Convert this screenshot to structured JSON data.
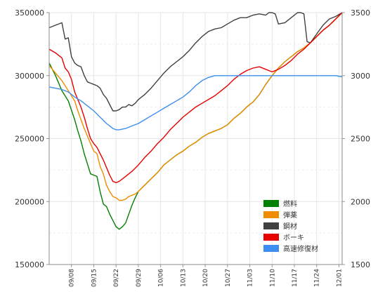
{
  "chart_data": {
    "type": "line",
    "title": "",
    "xlabel": "",
    "ylabel": "",
    "ylim_left": [
      150000,
      350000
    ],
    "ylim_right": [
      1500,
      3500
    ],
    "yticks_left": [
      "150000",
      "200000",
      "250000",
      "300000",
      "350000"
    ],
    "yticks_right": [
      "1500",
      "2000",
      "2500",
      "3000",
      "3500"
    ],
    "x_range": [
      0,
      92
    ],
    "x_ticks": [
      {
        "x": 7,
        "label": "09/08"
      },
      {
        "x": 14,
        "label": "09/15"
      },
      {
        "x": 21,
        "label": "09/22"
      },
      {
        "x": 28,
        "label": "09/29"
      },
      {
        "x": 35,
        "label": "10/06"
      },
      {
        "x": 42,
        "label": "10/13"
      },
      {
        "x": 49,
        "label": "10/20"
      },
      {
        "x": 56,
        "label": "10/27"
      },
      {
        "x": 63,
        "label": "11/03"
      },
      {
        "x": 70,
        "label": "11/10"
      },
      {
        "x": 77,
        "label": "11/17"
      },
      {
        "x": 84,
        "label": "11/24"
      },
      {
        "x": 91,
        "label": "12/01"
      }
    ],
    "grid": true,
    "legend_position": "bottom-right",
    "series": [
      {
        "name": "燃料",
        "color": "#008000",
        "axis": "left",
        "points": [
          [
            0,
            310000
          ],
          [
            2,
            300000
          ],
          [
            4,
            288000
          ],
          [
            6,
            280000
          ],
          [
            8,
            265000
          ],
          [
            9,
            256000
          ],
          [
            10,
            248000
          ],
          [
            11,
            238000
          ],
          [
            12,
            230000
          ],
          [
            13,
            222000
          ],
          [
            14,
            221000
          ],
          [
            15,
            220000
          ],
          [
            16,
            208000
          ],
          [
            17,
            198000
          ],
          [
            18,
            196000
          ],
          [
            19,
            190000
          ],
          [
            20,
            185000
          ],
          [
            21,
            180000
          ],
          [
            22,
            178000
          ],
          [
            23,
            180000
          ],
          [
            24,
            183000
          ],
          [
            25,
            190000
          ],
          [
            26,
            197000
          ],
          [
            27,
            203000
          ],
          [
            28,
            208000
          ],
          [
            30,
            213000
          ],
          [
            32,
            218000
          ],
          [
            34,
            223000
          ],
          [
            36,
            229000
          ],
          [
            38,
            233000
          ],
          [
            40,
            237000
          ],
          [
            42,
            240000
          ],
          [
            44,
            244000
          ],
          [
            46,
            247000
          ],
          [
            48,
            251000
          ],
          [
            50,
            254000
          ],
          [
            52,
            256000
          ],
          [
            54,
            258000
          ],
          [
            56,
            261000
          ],
          [
            58,
            266000
          ],
          [
            60,
            270000
          ],
          [
            62,
            275000
          ],
          [
            64,
            279000
          ],
          [
            66,
            285000
          ],
          [
            68,
            293000
          ],
          [
            70,
            300000
          ],
          [
            72,
            306000
          ],
          [
            74,
            311000
          ],
          [
            76,
            315000
          ],
          [
            78,
            319000
          ],
          [
            80,
            322000
          ],
          [
            82,
            326000
          ],
          [
            84,
            331000
          ],
          [
            86,
            336000
          ],
          [
            88,
            340000
          ],
          [
            90,
            345000
          ],
          [
            92,
            350000
          ]
        ]
      },
      {
        "name": "弾薬",
        "color": "#f08c00",
        "axis": "left",
        "points": [
          [
            0,
            308000
          ],
          [
            2,
            302000
          ],
          [
            4,
            296000
          ],
          [
            6,
            288000
          ],
          [
            8,
            280000
          ],
          [
            9,
            272000
          ],
          [
            10,
            265000
          ],
          [
            11,
            258000
          ],
          [
            12,
            252000
          ],
          [
            13,
            246000
          ],
          [
            14,
            240000
          ],
          [
            15,
            238000
          ],
          [
            16,
            228000
          ],
          [
            17,
            222000
          ],
          [
            18,
            213000
          ],
          [
            19,
            208000
          ],
          [
            20,
            204000
          ],
          [
            21,
            203000
          ],
          [
            22,
            201000
          ],
          [
            23,
            201000
          ],
          [
            24,
            202000
          ],
          [
            25,
            204000
          ],
          [
            26,
            205000
          ],
          [
            27,
            206000
          ],
          [
            28,
            208000
          ],
          [
            30,
            213000
          ],
          [
            32,
            218000
          ],
          [
            34,
            223000
          ],
          [
            36,
            229000
          ],
          [
            38,
            233000
          ],
          [
            40,
            237000
          ],
          [
            42,
            240000
          ],
          [
            44,
            244000
          ],
          [
            46,
            247000
          ],
          [
            48,
            251000
          ],
          [
            50,
            254000
          ],
          [
            52,
            256000
          ],
          [
            54,
            258000
          ],
          [
            56,
            261000
          ],
          [
            58,
            266000
          ],
          [
            60,
            270000
          ],
          [
            62,
            275000
          ],
          [
            64,
            279000
          ],
          [
            66,
            285000
          ],
          [
            68,
            293000
          ],
          [
            70,
            300000
          ],
          [
            72,
            306000
          ],
          [
            74,
            311000
          ],
          [
            76,
            315000
          ],
          [
            78,
            319000
          ],
          [
            80,
            322000
          ],
          [
            82,
            326000
          ],
          [
            84,
            331000
          ],
          [
            86,
            336000
          ],
          [
            88,
            340000
          ],
          [
            90,
            345000
          ],
          [
            92,
            350000
          ]
        ]
      },
      {
        "name": "鋼材",
        "color": "#404040",
        "axis": "left",
        "points": [
          [
            0,
            338000
          ],
          [
            2,
            340000
          ],
          [
            4,
            342000
          ],
          [
            5,
            329000
          ],
          [
            6,
            330000
          ],
          [
            7,
            315000
          ],
          [
            8,
            310000
          ],
          [
            9,
            308000
          ],
          [
            10,
            307000
          ],
          [
            11,
            300000
          ],
          [
            12,
            295000
          ],
          [
            13,
            294000
          ],
          [
            14,
            293000
          ],
          [
            15,
            292000
          ],
          [
            16,
            290000
          ],
          [
            17,
            285000
          ],
          [
            18,
            282000
          ],
          [
            19,
            277000
          ],
          [
            20,
            272000
          ],
          [
            21,
            272000
          ],
          [
            22,
            273000
          ],
          [
            23,
            275000
          ],
          [
            24,
            275000
          ],
          [
            25,
            277000
          ],
          [
            26,
            276000
          ],
          [
            27,
            278000
          ],
          [
            28,
            281000
          ],
          [
            30,
            285000
          ],
          [
            32,
            290000
          ],
          [
            34,
            296000
          ],
          [
            36,
            302000
          ],
          [
            38,
            307000
          ],
          [
            40,
            311000
          ],
          [
            42,
            315000
          ],
          [
            44,
            320000
          ],
          [
            46,
            326000
          ],
          [
            48,
            331000
          ],
          [
            50,
            335000
          ],
          [
            52,
            337000
          ],
          [
            54,
            338000
          ],
          [
            56,
            341000
          ],
          [
            58,
            344000
          ],
          [
            60,
            346000
          ],
          [
            62,
            346000
          ],
          [
            64,
            348000
          ],
          [
            66,
            349000
          ],
          [
            68,
            348000
          ],
          [
            69,
            350000
          ],
          [
            70,
            350000
          ],
          [
            71,
            349000
          ],
          [
            72,
            341000
          ],
          [
            74,
            342000
          ],
          [
            76,
            346000
          ],
          [
            78,
            350000
          ],
          [
            79,
            350000
          ],
          [
            80,
            349000
          ],
          [
            81,
            327000
          ],
          [
            82,
            326000
          ],
          [
            84,
            333000
          ],
          [
            86,
            340000
          ],
          [
            88,
            345000
          ],
          [
            90,
            347000
          ],
          [
            92,
            350000
          ]
        ]
      },
      {
        "name": "ボーキ",
        "color": "#e60000",
        "axis": "left",
        "points": [
          [
            0,
            321000
          ],
          [
            2,
            318000
          ],
          [
            4,
            314000
          ],
          [
            5,
            306000
          ],
          [
            6,
            303000
          ],
          [
            7,
            297000
          ],
          [
            8,
            287000
          ],
          [
            9,
            281000
          ],
          [
            10,
            275000
          ],
          [
            11,
            267000
          ],
          [
            12,
            258000
          ],
          [
            13,
            250000
          ],
          [
            14,
            246000
          ],
          [
            15,
            243000
          ],
          [
            16,
            238000
          ],
          [
            17,
            233000
          ],
          [
            18,
            227000
          ],
          [
            19,
            221000
          ],
          [
            20,
            216000
          ],
          [
            21,
            215000
          ],
          [
            22,
            216000
          ],
          [
            23,
            218000
          ],
          [
            24,
            220000
          ],
          [
            25,
            222000
          ],
          [
            26,
            224000
          ],
          [
            28,
            229000
          ],
          [
            30,
            235000
          ],
          [
            32,
            240000
          ],
          [
            34,
            246000
          ],
          [
            36,
            251000
          ],
          [
            38,
            257000
          ],
          [
            40,
            262000
          ],
          [
            42,
            267000
          ],
          [
            44,
            271000
          ],
          [
            46,
            275000
          ],
          [
            48,
            278000
          ],
          [
            50,
            281000
          ],
          [
            52,
            284000
          ],
          [
            54,
            288000
          ],
          [
            56,
            292000
          ],
          [
            58,
            297000
          ],
          [
            60,
            301000
          ],
          [
            62,
            304000
          ],
          [
            64,
            306000
          ],
          [
            66,
            307000
          ],
          [
            68,
            305000
          ],
          [
            70,
            303000
          ],
          [
            72,
            305000
          ],
          [
            74,
            308000
          ],
          [
            76,
            312000
          ],
          [
            78,
            317000
          ],
          [
            80,
            321000
          ],
          [
            82,
            326000
          ],
          [
            84,
            331000
          ],
          [
            86,
            336000
          ],
          [
            88,
            340000
          ],
          [
            90,
            345000
          ],
          [
            92,
            350000
          ]
        ]
      },
      {
        "name": "高速修復材",
        "color": "#3c8ff0",
        "axis": "right",
        "points": [
          [
            0,
            2910
          ],
          [
            2,
            2900
          ],
          [
            4,
            2890
          ],
          [
            6,
            2870
          ],
          [
            8,
            2830
          ],
          [
            10,
            2800
          ],
          [
            12,
            2760
          ],
          [
            14,
            2720
          ],
          [
            16,
            2670
          ],
          [
            18,
            2620
          ],
          [
            20,
            2580
          ],
          [
            21,
            2570
          ],
          [
            22,
            2570
          ],
          [
            24,
            2580
          ],
          [
            26,
            2600
          ],
          [
            28,
            2620
          ],
          [
            30,
            2650
          ],
          [
            32,
            2680
          ],
          [
            34,
            2710
          ],
          [
            36,
            2740
          ],
          [
            38,
            2770
          ],
          [
            40,
            2800
          ],
          [
            42,
            2830
          ],
          [
            44,
            2870
          ],
          [
            46,
            2920
          ],
          [
            48,
            2960
          ],
          [
            50,
            2985
          ],
          [
            52,
            3000
          ],
          [
            54,
            3000
          ],
          [
            56,
            3000
          ],
          [
            58,
            3000
          ],
          [
            60,
            3000
          ],
          [
            62,
            3000
          ],
          [
            64,
            3000
          ],
          [
            66,
            3000
          ],
          [
            68,
            3000
          ],
          [
            70,
            3000
          ],
          [
            72,
            3000
          ],
          [
            74,
            3000
          ],
          [
            76,
            3000
          ],
          [
            78,
            3000
          ],
          [
            80,
            3000
          ],
          [
            82,
            3000
          ],
          [
            84,
            3000
          ],
          [
            86,
            3000
          ],
          [
            88,
            3000
          ],
          [
            90,
            3000
          ],
          [
            92,
            2990
          ]
        ]
      }
    ]
  }
}
